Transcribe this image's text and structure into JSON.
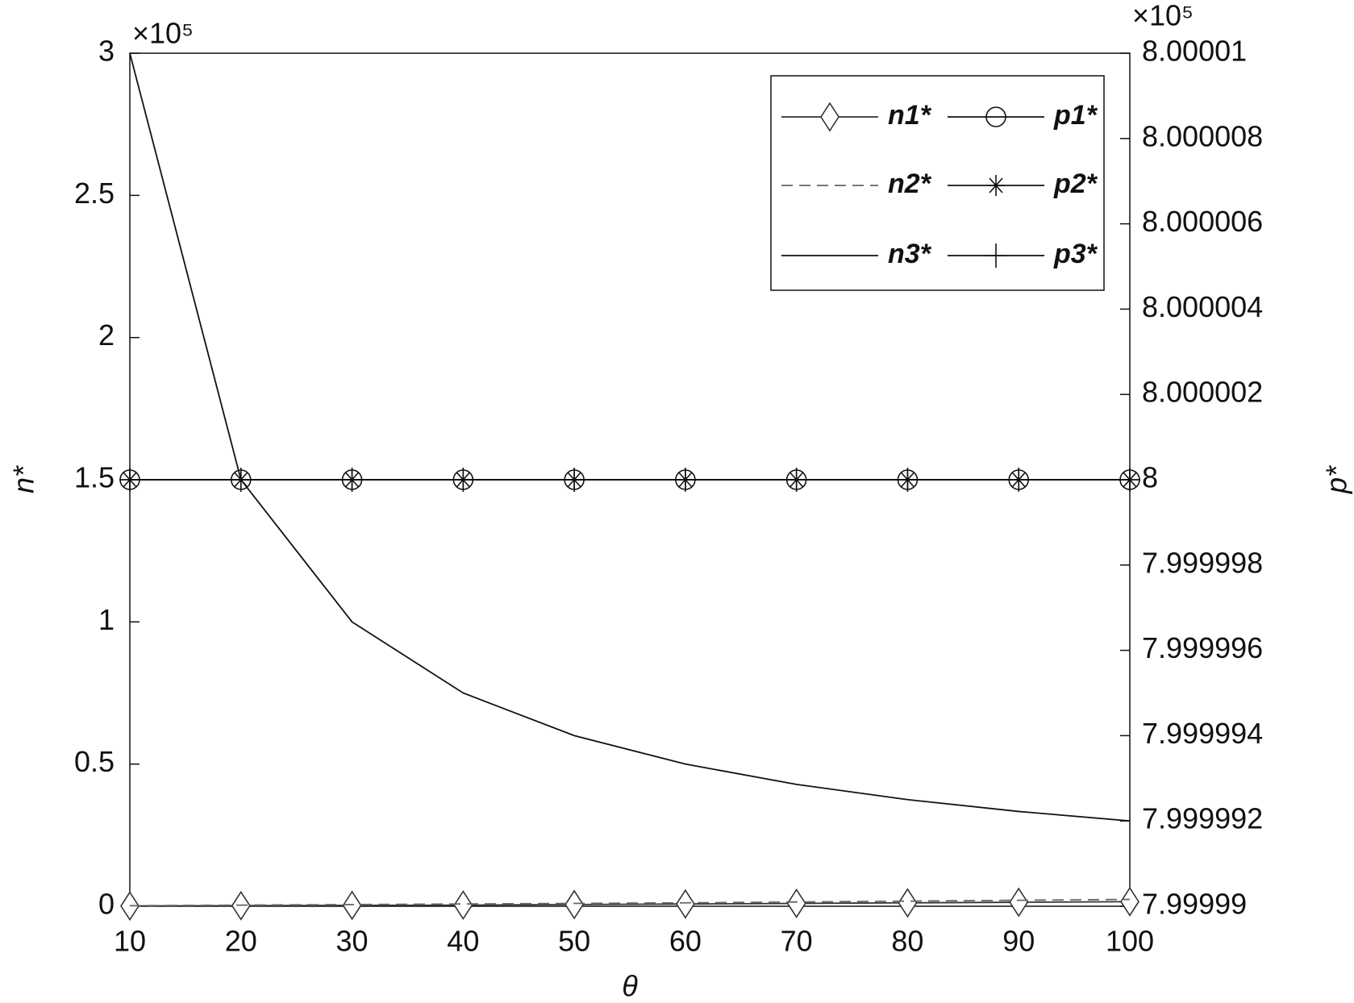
{
  "chart_data": {
    "type": "line",
    "x_label": "θ",
    "y_label": "n*",
    "y2_label": "p*",
    "y_multiplier": "×10⁵",
    "y2_multiplier": "×10⁵",
    "x": [
      10,
      20,
      30,
      40,
      50,
      60,
      70,
      80,
      90,
      100
    ],
    "xlim": [
      10,
      100
    ],
    "xticks": [
      10,
      20,
      30,
      40,
      50,
      60,
      70,
      80,
      90,
      100
    ],
    "ylim": [
      0,
      3
    ],
    "yticks": [
      0,
      0.5,
      1,
      1.5,
      2,
      2.5,
      3
    ],
    "y2lim": [
      7.99999,
      8.00001
    ],
    "y2ticks": [
      7.99999,
      7.999992,
      7.999994,
      7.999996,
      7.999998,
      8,
      8.000002,
      8.000004,
      8.000006,
      8.000008,
      8.00001
    ],
    "legend": "top-right",
    "series": [
      {
        "name": "n1*",
        "color": "#333333",
        "marker": "diamond",
        "dash": "solid",
        "axis": "y",
        "values": [
          0.001,
          0.002,
          0.003,
          0.004,
          0.006,
          0.008,
          0.01,
          0.012,
          0.014,
          0.016
        ]
      },
      {
        "name": "p1*",
        "color": "#111111",
        "marker": "circle",
        "dash": "solid",
        "axis": "y2",
        "values": [
          8,
          8,
          8,
          8,
          8,
          8,
          8,
          8,
          8,
          8
        ]
      },
      {
        "name": "n2*",
        "color": "#666666",
        "marker": "none",
        "dash": "dashed",
        "axis": "y",
        "values": [
          0.002,
          0.004,
          0.006,
          0.008,
          0.01,
          0.012,
          0.015,
          0.018,
          0.021,
          0.024
        ]
      },
      {
        "name": "p2*",
        "color": "#111111",
        "marker": "asterisk",
        "dash": "solid",
        "axis": "y2",
        "values": [
          8,
          8,
          8,
          8,
          8,
          8,
          8,
          8,
          8,
          8
        ]
      },
      {
        "name": "n3*",
        "color": "#111111",
        "marker": "none",
        "dash": "solid",
        "axis": "y",
        "values": [
          3,
          1.5,
          1,
          0.75,
          0.6,
          0.5,
          0.4286,
          0.375,
          0.3333,
          0.3
        ]
      },
      {
        "name": "p3*",
        "color": "#111111",
        "marker": "plus",
        "dash": "solid",
        "axis": "y2",
        "values": [
          8,
          8,
          8,
          8,
          8,
          8,
          8,
          8,
          8,
          8
        ]
      }
    ]
  }
}
